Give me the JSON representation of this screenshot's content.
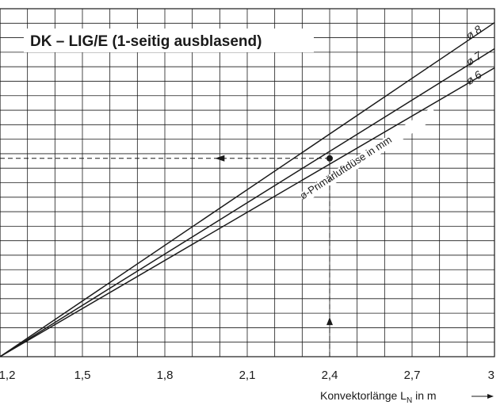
{
  "chart_data": {
    "type": "line",
    "title": "DK – LIG/E  (1-seitig ausblasend)",
    "xlabel": "Konvektorlänge L",
    "xlabel_sub": "N",
    "xlabel_unit": " in m",
    "xlim": [
      1.2,
      3.0
    ],
    "x_ticks": [
      1.2,
      1.5,
      1.8,
      2.1,
      2.4,
      2.7,
      3.0
    ],
    "x_tick_labels": [
      "1,2",
      "1,5",
      "1,8",
      "2,1",
      "2,4",
      "2,7",
      "3"
    ],
    "ylim": [
      0,
      1
    ],
    "grid": true,
    "series_annotation": "ø-Primärluftdüse in mm",
    "series": [
      {
        "name": "ø 8",
        "x": [
          1.2,
          3.0
        ],
        "y": [
          0.0,
          0.96
        ]
      },
      {
        "name": "ø 7",
        "x": [
          1.2,
          3.0
        ],
        "y": [
          0.0,
          0.885
        ]
      },
      {
        "name": "ø 6",
        "x": [
          1.2,
          3.0
        ],
        "y": [
          0.0,
          0.83
        ]
      }
    ],
    "example": {
      "x": 2.4,
      "y": 0.57
    }
  }
}
